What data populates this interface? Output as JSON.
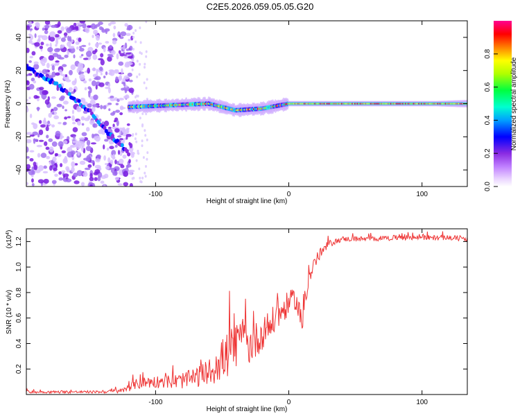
{
  "figure_title": "C2E5.2026.059.05.05.G20",
  "chart_data": [
    {
      "type": "heatmap",
      "name": "spectrogram",
      "xlabel": "Height of straight line (km)",
      "ylabel": "Frequency (Hz)",
      "xlim": [
        -197,
        134
      ],
      "ylim": [
        -50,
        50
      ],
      "xticks": [
        -100,
        0,
        100
      ],
      "xtick_labels": [
        "-100",
        "0",
        "100"
      ],
      "yticks": [
        -40,
        -20,
        0,
        20,
        40
      ],
      "ytick_labels": [
        "-40",
        "-20",
        "0",
        "20",
        "40"
      ],
      "colorbar": {
        "label": "Normalized spectral amplitude",
        "range": [
          0,
          1
        ],
        "ticks": [
          0.0,
          0.2,
          0.4,
          0.6,
          0.8
        ],
        "tick_labels": [
          "0.0",
          "0.2",
          "0.4",
          "0.6",
          "0.8"
        ],
        "colormap": [
          "#ffffff",
          "#d9b8ff",
          "#8a3cff",
          "#0000ff",
          "#00a0ff",
          "#00ffd0",
          "#00ff40",
          "#b0ff00",
          "#ffff00",
          "#ff8000",
          "#ff0000",
          "#ff0090"
        ]
      },
      "features": [
        {
          "name": "diagonal line",
          "x": [
            -197,
            -175,
            -150,
            -135,
            -120
          ],
          "y": [
            22,
            12,
            -4,
            -18,
            -30
          ]
        },
        {
          "name": "center line",
          "x": [
            -120,
            -60,
            -40,
            -20,
            0,
            20,
            134
          ],
          "y": [
            -2,
            0,
            -4,
            -3,
            0,
            0,
            0
          ]
        }
      ]
    },
    {
      "type": "line",
      "name": "snr",
      "xlabel": "Height of straight line (km)",
      "ylabel": "SNR (10 * v/v)",
      "scale_label_prefix": "(x10",
      "scale_label_exp": "4",
      "scale_label_suffix": ")",
      "xlim": [
        -197,
        134
      ],
      "ylim": [
        0,
        1.3
      ],
      "xticks": [
        -100,
        0,
        100
      ],
      "xtick_labels": [
        "-100",
        "0",
        "100"
      ],
      "yticks": [
        0.2,
        0.4,
        0.6,
        0.8,
        1.0,
        1.2
      ],
      "ytick_labels": [
        "0.2",
        "0.4",
        "0.6",
        "0.8",
        "1.0",
        "1.2"
      ],
      "line_color": "#ee3333",
      "series": [
        {
          "name": "SNR",
          "x": [
            -197,
            -180,
            -160,
            -140,
            -125,
            -115,
            -105,
            -95,
            -85,
            -75,
            -65,
            -55,
            -50,
            -45,
            -40,
            -35,
            -30,
            -25,
            -20,
            -15,
            -10,
            -5,
            0,
            5,
            8,
            10,
            12,
            15,
            20,
            25,
            30,
            35,
            40,
            50,
            60,
            80,
            100,
            120,
            134
          ],
          "y": [
            0.02,
            0.02,
            0.02,
            0.02,
            0.03,
            0.08,
            0.1,
            0.1,
            0.1,
            0.12,
            0.15,
            0.2,
            0.28,
            0.32,
            0.35,
            0.4,
            0.38,
            0.42,
            0.48,
            0.52,
            0.6,
            0.65,
            0.72,
            0.75,
            0.65,
            0.5,
            0.78,
            0.9,
            1.05,
            1.12,
            1.18,
            1.2,
            1.22,
            1.22,
            1.22,
            1.23,
            1.23,
            1.23,
            1.22
          ],
          "noise": [
            0.01,
            0.01,
            0.01,
            0.01,
            0.02,
            0.04,
            0.05,
            0.05,
            0.06,
            0.07,
            0.09,
            0.12,
            0.16,
            0.2,
            0.22,
            0.2,
            0.15,
            0.15,
            0.13,
            0.12,
            0.12,
            0.1,
            0.1,
            0.08,
            0.12,
            0.1,
            0.1,
            0.08,
            0.06,
            0.04,
            0.03,
            0.02,
            0.02,
            0.02,
            0.02,
            0.02,
            0.02,
            0.02,
            0.02
          ]
        }
      ]
    }
  ]
}
